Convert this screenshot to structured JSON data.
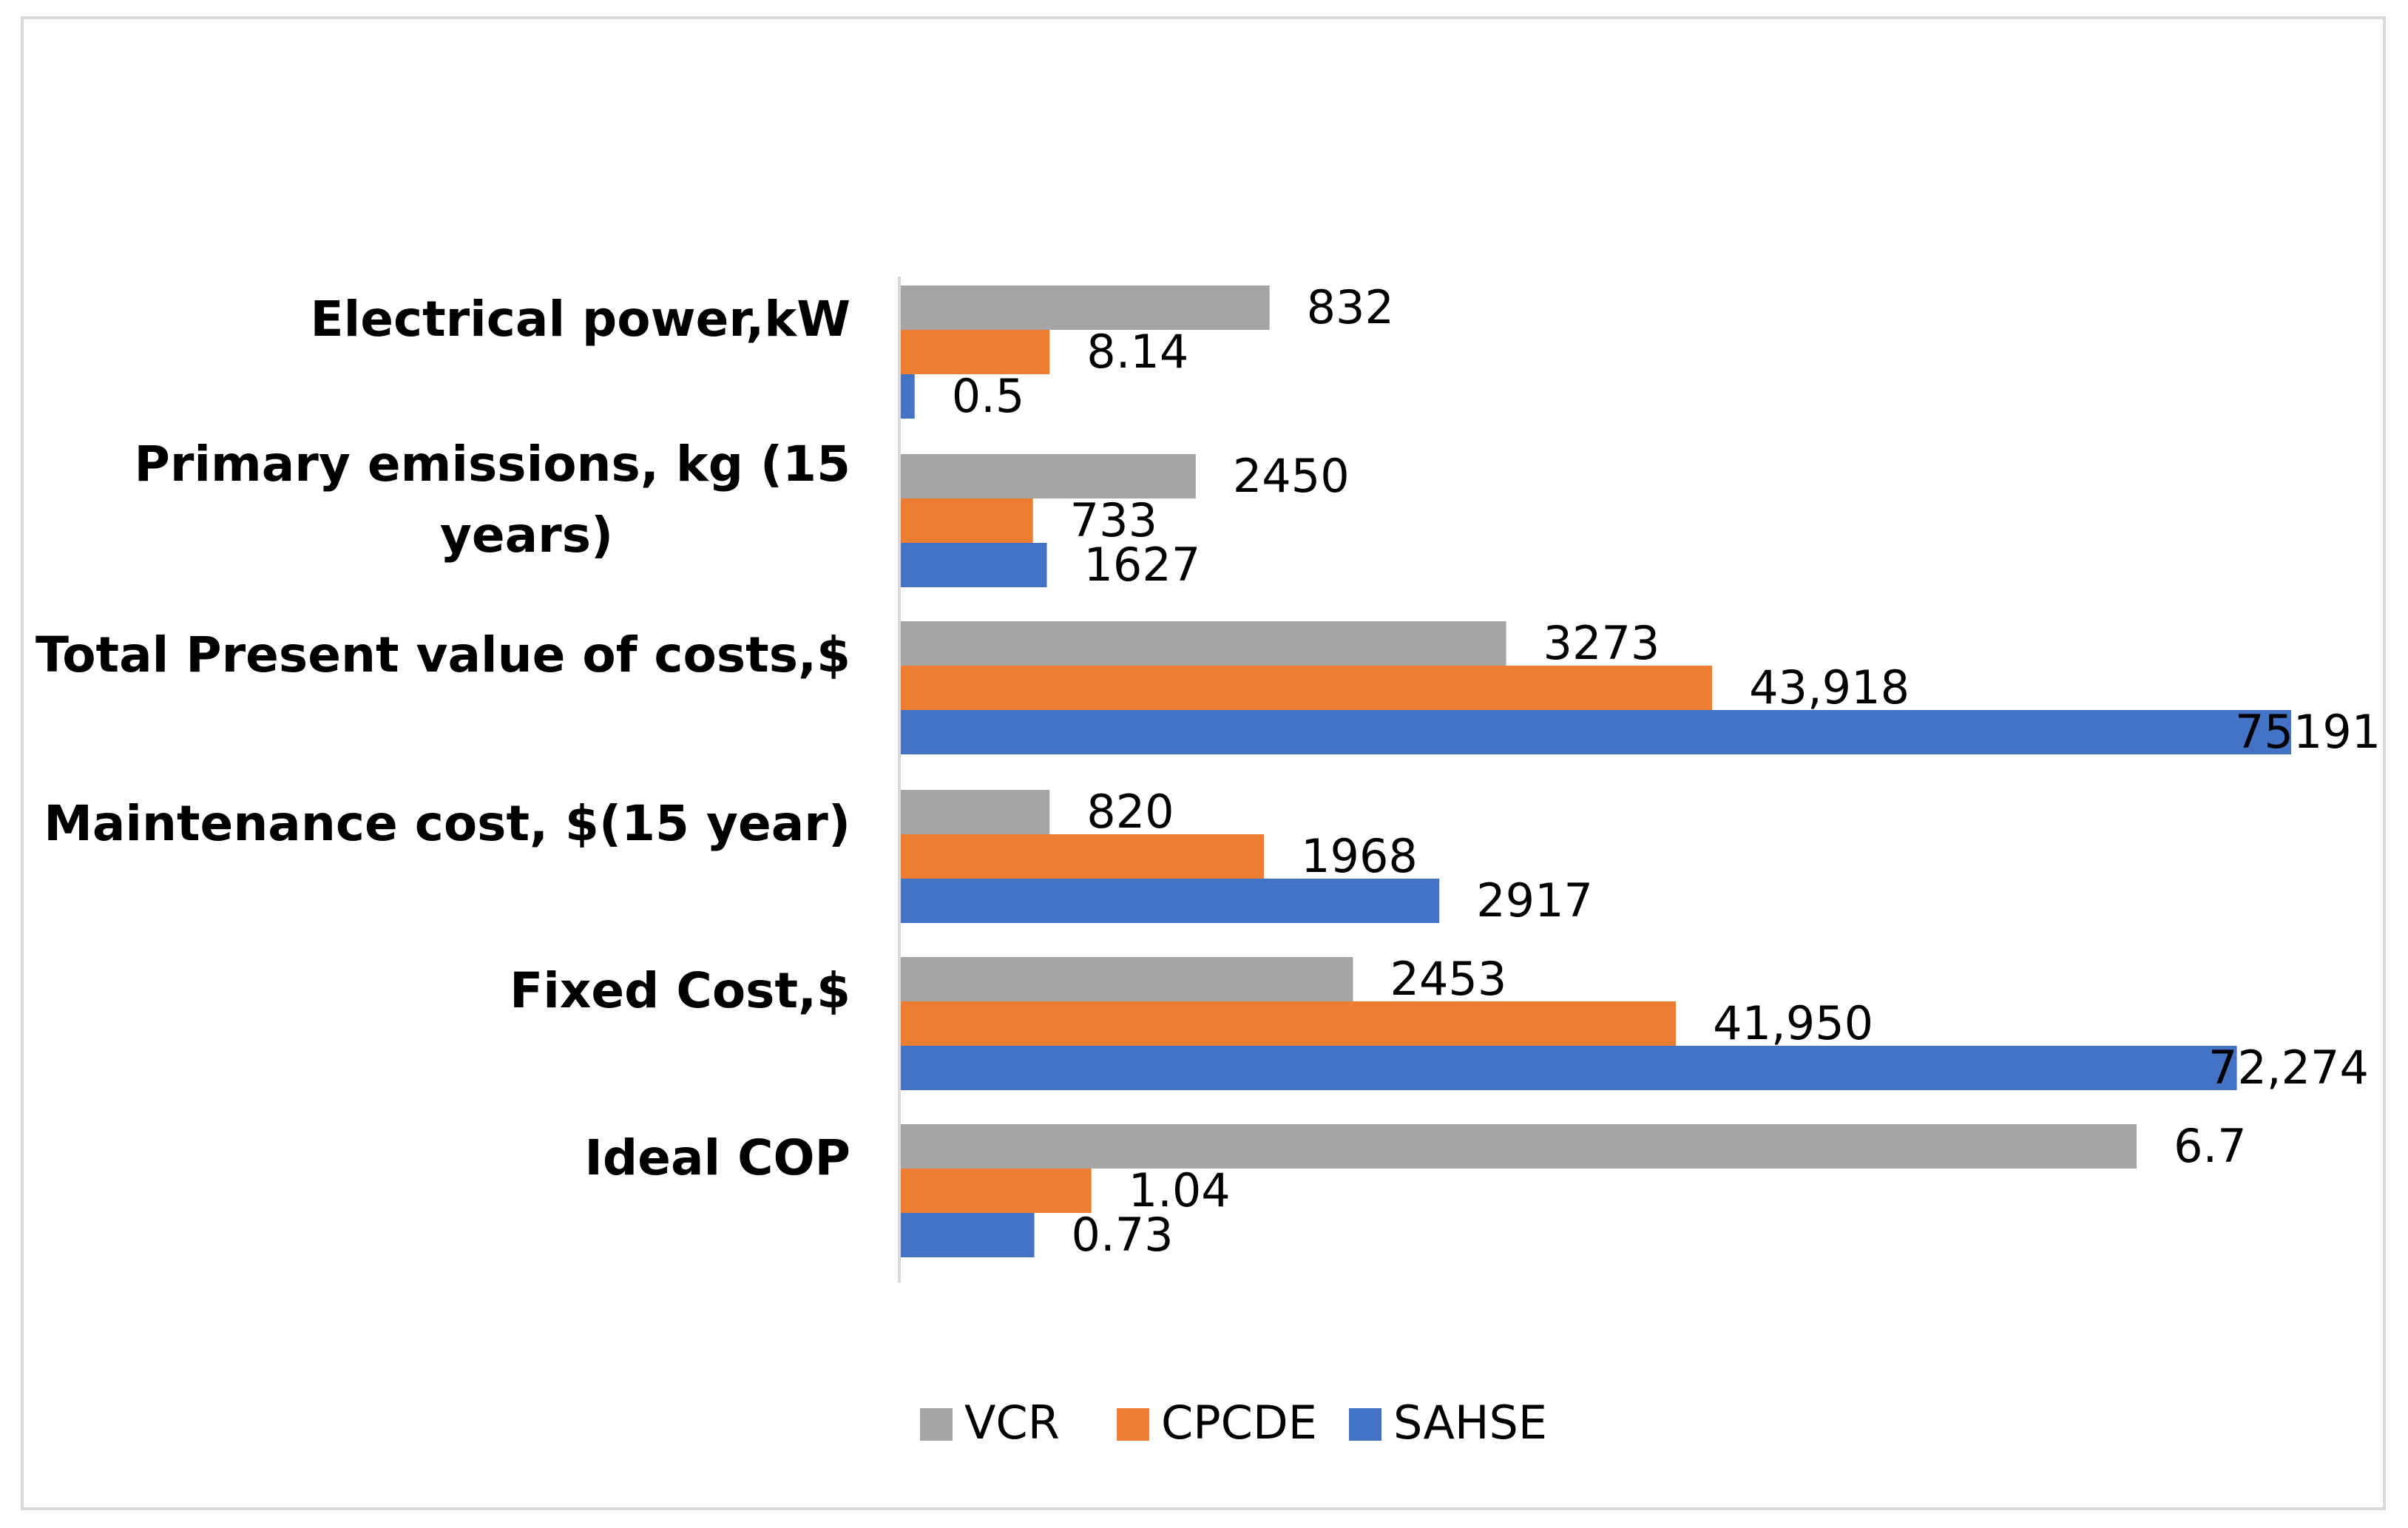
{
  "chart_data": {
    "type": "bar",
    "orientation": "horizontal",
    "title": "",
    "xlabel": "",
    "ylabel": "",
    "grid": false,
    "legend_position": "bottom-center",
    "categories": [
      [
        "Electrical power,kW"
      ],
      [
        "Primary emissions, kg (15",
        "years)"
      ],
      [
        "Total Present value of costs,$"
      ],
      [
        "Maintenance cost, $(15 year)"
      ],
      [
        "Fixed Cost,$"
      ],
      [
        "Ideal COP"
      ]
    ],
    "series": [
      {
        "name": "VCR",
        "color": "#a5a5a5",
        "values": [
          832,
          2450,
          3273,
          820,
          2453,
          6.7
        ],
        "labels": [
          "832",
          "2450",
          "3273",
          "820",
          "2453",
          "6.7"
        ]
      },
      {
        "name": "CPCDE",
        "color": "#ed7d31",
        "values": [
          8.14,
          733,
          43918,
          1968,
          41950,
          1.04
        ],
        "labels": [
          "8.14",
          "733",
          "43,918",
          "1968",
          "41,950",
          "1.04"
        ]
      },
      {
        "name": "SAHSE",
        "color": "#4472c4",
        "values": [
          0.5,
          1627,
          75191,
          2917,
          72274,
          0.73
        ],
        "labels": [
          "0.5",
          "1627",
          "75191",
          "2917",
          "72,274",
          "0.73"
        ]
      }
    ],
    "bar_fraction_of_axis": [
      [
        0.266,
        0.108,
        0.011
      ],
      [
        0.213,
        0.096,
        0.106
      ],
      [
        0.436,
        0.584,
        1.0
      ],
      [
        0.108,
        0.262,
        0.388
      ],
      [
        0.326,
        0.558,
        0.961
      ],
      [
        0.889,
        0.138,
        0.097
      ]
    ]
  }
}
